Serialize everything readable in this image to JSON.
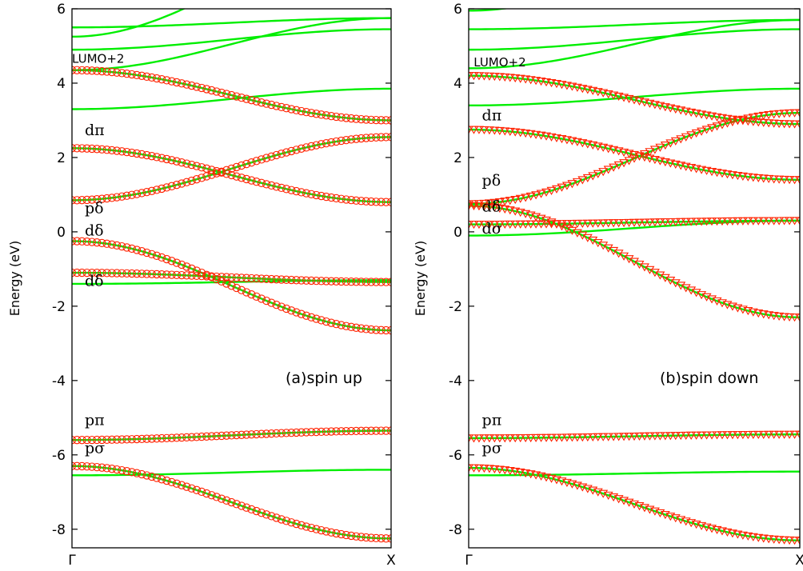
{
  "chart_data": [
    {
      "type": "line",
      "title": "(a)spin up",
      "ylabel": "Energy (eV)",
      "xlabel": "",
      "ylim": [
        -8.5,
        6
      ],
      "yticks": [
        -8,
        -6,
        -4,
        -2,
        0,
        2,
        4,
        6
      ],
      "xticks": [
        {
          "x": 0,
          "label": "Γ"
        },
        {
          "x": 1,
          "label": "X"
        }
      ],
      "marker": "circle",
      "colors": {
        "band": "#00ee00",
        "marker": "#ff2200"
      },
      "bands": [
        {
          "start": 5.25,
          "end": 8.0,
          "marked": false
        },
        {
          "start": 5.5,
          "end": 5.75,
          "marked": false
        },
        {
          "start": 4.9,
          "end": 5.45,
          "marked": false
        },
        {
          "start": 4.35,
          "end": 5.75,
          "marked": false
        },
        {
          "start": 4.35,
          "end": 3.0,
          "marked": true
        },
        {
          "start": 3.3,
          "end": 3.85,
          "marked": false
        },
        {
          "start": 2.25,
          "end": 0.8,
          "marked": true
        },
        {
          "start": 0.85,
          "end": 2.55,
          "marked": true
        },
        {
          "start": -0.25,
          "end": -2.65,
          "marked": true
        },
        {
          "start": -1.1,
          "end": -1.35,
          "marked": true
        },
        {
          "start": -1.4,
          "end": -1.3,
          "marked": false
        },
        {
          "start": -5.6,
          "end": -5.35,
          "marked": true
        },
        {
          "start": -6.3,
          "end": -8.25,
          "marked": true
        },
        {
          "start": -6.55,
          "end": -6.4,
          "marked": false
        }
      ],
      "annotations": [
        {
          "text": "LUMO+2",
          "x": 0.0,
          "y": 4.55,
          "style": "lumo"
        },
        {
          "text": "dπ",
          "x": 0.04,
          "y": 2.6,
          "style": "band"
        },
        {
          "text": "pδ",
          "x": 0.04,
          "y": 0.5,
          "style": "band"
        },
        {
          "text": "dδ",
          "x": 0.04,
          "y": -0.1,
          "style": "band"
        },
        {
          "text": "dδ",
          "x": 0.04,
          "y": -1.45,
          "style": "band"
        },
        {
          "text": "pπ",
          "x": 0.04,
          "y": -5.2,
          "style": "band"
        },
        {
          "text": "pσ",
          "x": 0.04,
          "y": -5.95,
          "style": "band"
        }
      ]
    },
    {
      "type": "line",
      "title": "(b)spin down",
      "ylabel": "Energy (eV)",
      "xlabel": "",
      "ylim": [
        -8.5,
        6
      ],
      "yticks": [
        -8,
        -6,
        -4,
        -2,
        0,
        2,
        4,
        6
      ],
      "xticks": [
        {
          "x": 0,
          "label": "Γ"
        },
        {
          "x": 1,
          "label": "X"
        }
      ],
      "marker": "triangle-down",
      "colors": {
        "band": "#00ee00",
        "marker": "#ff2200"
      },
      "bands": [
        {
          "start": 5.95,
          "end": 8.0,
          "marked": false
        },
        {
          "start": 5.45,
          "end": 5.7,
          "marked": false
        },
        {
          "start": 4.9,
          "end": 5.45,
          "marked": false
        },
        {
          "start": 4.4,
          "end": 5.7,
          "marked": false
        },
        {
          "start": 4.2,
          "end": 2.9,
          "marked": true
        },
        {
          "start": 3.4,
          "end": 3.85,
          "marked": false
        },
        {
          "start": 2.75,
          "end": 1.4,
          "marked": true
        },
        {
          "start": 0.75,
          "end": 3.2,
          "marked": true
        },
        {
          "start": 0.7,
          "end": -2.3,
          "marked": true
        },
        {
          "start": 0.2,
          "end": 0.3,
          "marked": true
        },
        {
          "start": -0.1,
          "end": 0.3,
          "marked": false
        },
        {
          "start": -5.55,
          "end": -5.45,
          "marked": true
        },
        {
          "start": -6.35,
          "end": -8.3,
          "marked": true
        },
        {
          "start": -6.55,
          "end": -6.45,
          "marked": false
        }
      ],
      "annotations": [
        {
          "text": "LUMO+2",
          "x": 0.015,
          "y": 4.45,
          "style": "lumo"
        },
        {
          "text": "dπ",
          "x": 0.04,
          "y": 3.0,
          "style": "band"
        },
        {
          "text": "pδ",
          "x": 0.04,
          "y": 1.25,
          "style": "band"
        },
        {
          "text": "dδ",
          "x": 0.04,
          "y": 0.55,
          "style": "band"
        },
        {
          "text": "dσ",
          "x": 0.04,
          "y": -0.05,
          "style": "band"
        },
        {
          "text": "pπ",
          "x": 0.04,
          "y": -5.2,
          "style": "band"
        },
        {
          "text": "pσ",
          "x": 0.04,
          "y": -5.95,
          "style": "band"
        }
      ]
    }
  ]
}
